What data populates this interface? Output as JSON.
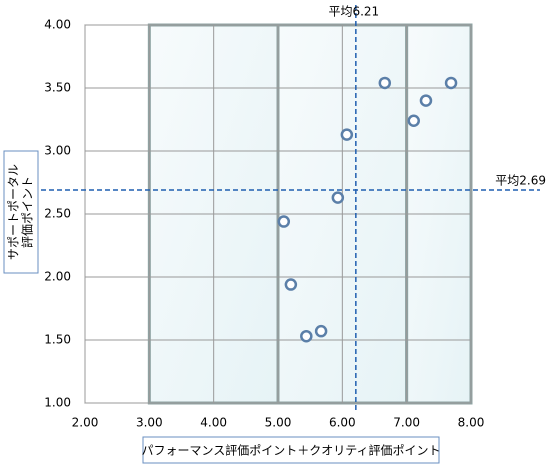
{
  "chart_data": {
    "type": "scatter",
    "x_label": "パフォーマンス評価ポイント＋クオリティ評価ポイント",
    "y_label": [
      "サポートポータル",
      "評価ポイント"
    ],
    "x": [
      5.09,
      5.2,
      5.44,
      5.67,
      5.93,
      6.07,
      6.66,
      7.11,
      7.3,
      7.69
    ],
    "series": [
      {
        "color": "#5b7fa8",
        "values": [
          2.44,
          1.94,
          1.53,
          1.57,
          2.63,
          3.13,
          3.54,
          3.24,
          3.4,
          3.54
        ]
      }
    ],
    "xlim": [
      2,
      8
    ],
    "ylim": [
      1,
      4
    ],
    "xticks": [
      {
        "value": 2,
        "label": "2.00"
      },
      {
        "value": 3,
        "label": "3.00"
      },
      {
        "value": 4,
        "label": "4.00"
      },
      {
        "value": 5,
        "label": "5.00"
      },
      {
        "value": 6,
        "label": "6.00"
      },
      {
        "value": 7,
        "label": "7.00"
      },
      {
        "value": 8,
        "label": "8.00"
      }
    ],
    "yticks": [
      {
        "value": 1,
        "label": "1.00"
      },
      {
        "value": 1.5,
        "label": "1.50"
      },
      {
        "value": 2,
        "label": "2.00"
      },
      {
        "value": 2.5,
        "label": "2.50"
      },
      {
        "value": 3,
        "label": "3.00"
      },
      {
        "value": 3.5,
        "label": "3.50"
      },
      {
        "value": 4,
        "label": "4.00"
      }
    ],
    "grid": true,
    "bands": [
      [
        3,
        5
      ],
      [
        5,
        7
      ],
      [
        7,
        8
      ]
    ],
    "reference_lines": {
      "x": {
        "value": 6.21,
        "label": "平均6.21"
      },
      "y": {
        "value": 2.69,
        "label": "平均2.69"
      }
    },
    "reference_color": "#1f5fb0"
  }
}
